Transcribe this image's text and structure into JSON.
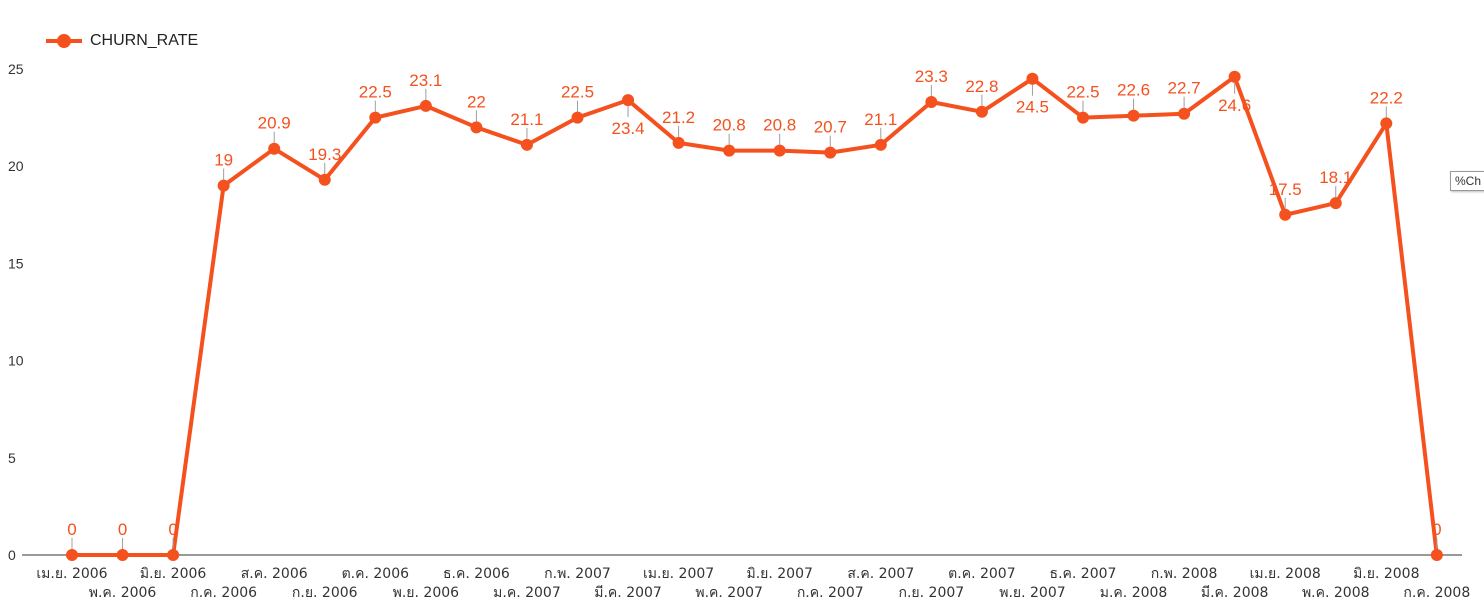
{
  "legend": {
    "label": "CHURN_RATE"
  },
  "tooltip": {
    "text": "%Ch"
  },
  "colors": {
    "series": "#F4511E",
    "axis": "#333333",
    "tick_text": "#333333"
  },
  "chart_data": {
    "type": "line",
    "x": [
      "เม.ย. 2006",
      "พ.ค. 2006",
      "มิ.ย. 2006",
      "ก.ค. 2006",
      "ส.ค. 2006",
      "ก.ย. 2006",
      "ต.ค. 2006",
      "พ.ย. 2006",
      "ธ.ค. 2006",
      "ม.ค. 2007",
      "ก.พ. 2007",
      "มี.ค. 2007",
      "เม.ย. 2007",
      "พ.ค. 2007",
      "มิ.ย. 2007",
      "ก.ค. 2007",
      "ส.ค. 2007",
      "ก.ย. 2007",
      "ต.ค. 2007",
      "พ.ย. 2007",
      "ธ.ค. 2007",
      "ม.ค. 2008",
      "ก.พ. 2008",
      "มี.ค. 2008",
      "เม.ย. 2008",
      "พ.ค. 2008",
      "มิ.ย. 2008",
      "ก.ค. 2008"
    ],
    "series": [
      {
        "name": "CHURN_RATE",
        "values": [
          0,
          0,
          0,
          19,
          20.9,
          19.3,
          22.5,
          23.1,
          22,
          21.1,
          22.5,
          23.4,
          21.2,
          20.8,
          20.8,
          20.7,
          21.1,
          23.3,
          22.8,
          24.5,
          22.5,
          22.6,
          22.7,
          24.6,
          17.5,
          18.1,
          22.2,
          0
        ],
        "labels": [
          "0",
          "0",
          "0",
          "19",
          "20.9",
          "19.3",
          "22.5",
          "23.1",
          "22",
          "21.1",
          "22.5",
          "23.4",
          "21.2",
          "20.8",
          "20.8",
          "20.7",
          "21.1",
          "23.3",
          "22.8",
          "24.5",
          "22.5",
          "22.6",
          "22.7",
          "24.6",
          "17.5",
          "18.1",
          "22.2",
          "0"
        ],
        "label_pos": [
          "above",
          "above",
          "above",
          "above",
          "above",
          "above",
          "above",
          "above",
          "above",
          "above",
          "above",
          "below",
          "above",
          "above",
          "above",
          "above",
          "above",
          "above",
          "above",
          "below",
          "above",
          "above",
          "above",
          "below",
          "above",
          "above",
          "above",
          "above"
        ]
      }
    ],
    "yticks": [
      "0",
      "5",
      "10",
      "15",
      "20",
      "25"
    ],
    "ylim": [
      0,
      25
    ],
    "xlabel": "",
    "ylabel": "",
    "grid": false,
    "legend_position": "top-left"
  }
}
